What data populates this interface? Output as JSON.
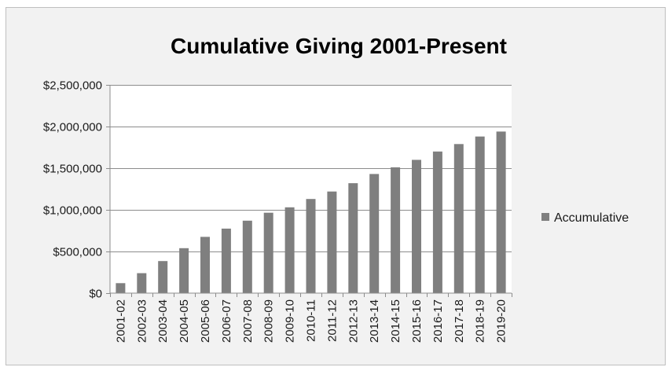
{
  "colors": {
    "background": "#f2f2f2",
    "plot_area": "#ffffff",
    "bar": "#7f7f7f",
    "gridline": "#8c8c8c"
  },
  "chart_data": {
    "type": "bar",
    "title": "Cumulative Giving 2001-Present",
    "xlabel": "",
    "ylabel": "",
    "ylim": [
      0,
      2500000
    ],
    "y_ticks": [
      0,
      500000,
      1000000,
      1500000,
      2000000,
      2500000
    ],
    "y_tick_labels": [
      "$0",
      "$500,000",
      "$1,000,000",
      "$1,500,000",
      "$2,000,000",
      "$2,500,000"
    ],
    "grid": true,
    "legend_position": "right",
    "categories": [
      "2001-02",
      "2002-03",
      "2003-04",
      "2004-05",
      "2005-06",
      "2006-07",
      "2007-08",
      "2008-09",
      "2009-10",
      "2010-11",
      "2011-12",
      "2012-13",
      "2013-14",
      "2014-15",
      "2015-16",
      "2016-17",
      "2017-18",
      "2018-19",
      "2019-20"
    ],
    "series": [
      {
        "name": "Accumulative",
        "values": [
          120000,
          240000,
          385000,
          540000,
          675000,
          775000,
          870000,
          965000,
          1030000,
          1130000,
          1220000,
          1320000,
          1430000,
          1510000,
          1600000,
          1700000,
          1790000,
          1880000,
          1940000
        ]
      }
    ]
  }
}
